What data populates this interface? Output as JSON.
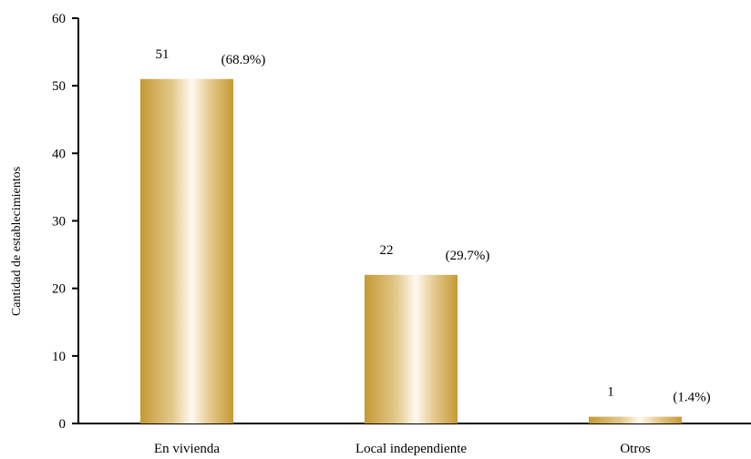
{
  "chart_data": {
    "type": "bar",
    "categories": [
      "En vivienda",
      "Local independiente",
      "Otros"
    ],
    "values": [
      51,
      22,
      1
    ],
    "percent_labels": [
      "(68.9%)",
      "(29.7%)",
      "(1.4%)"
    ],
    "value_labels": [
      "51",
      "22",
      "1"
    ],
    "title": "",
    "xlabel": "",
    "ylabel": "Cantidad de establecimientos",
    "ylim": [
      0,
      60
    ],
    "yticks": [
      "0",
      "10",
      "20",
      "30",
      "40",
      "50",
      "60"
    ],
    "grid": false,
    "legend": "none",
    "bar_color": "#c9a03f",
    "bar_highlight": "#fffaf0"
  }
}
